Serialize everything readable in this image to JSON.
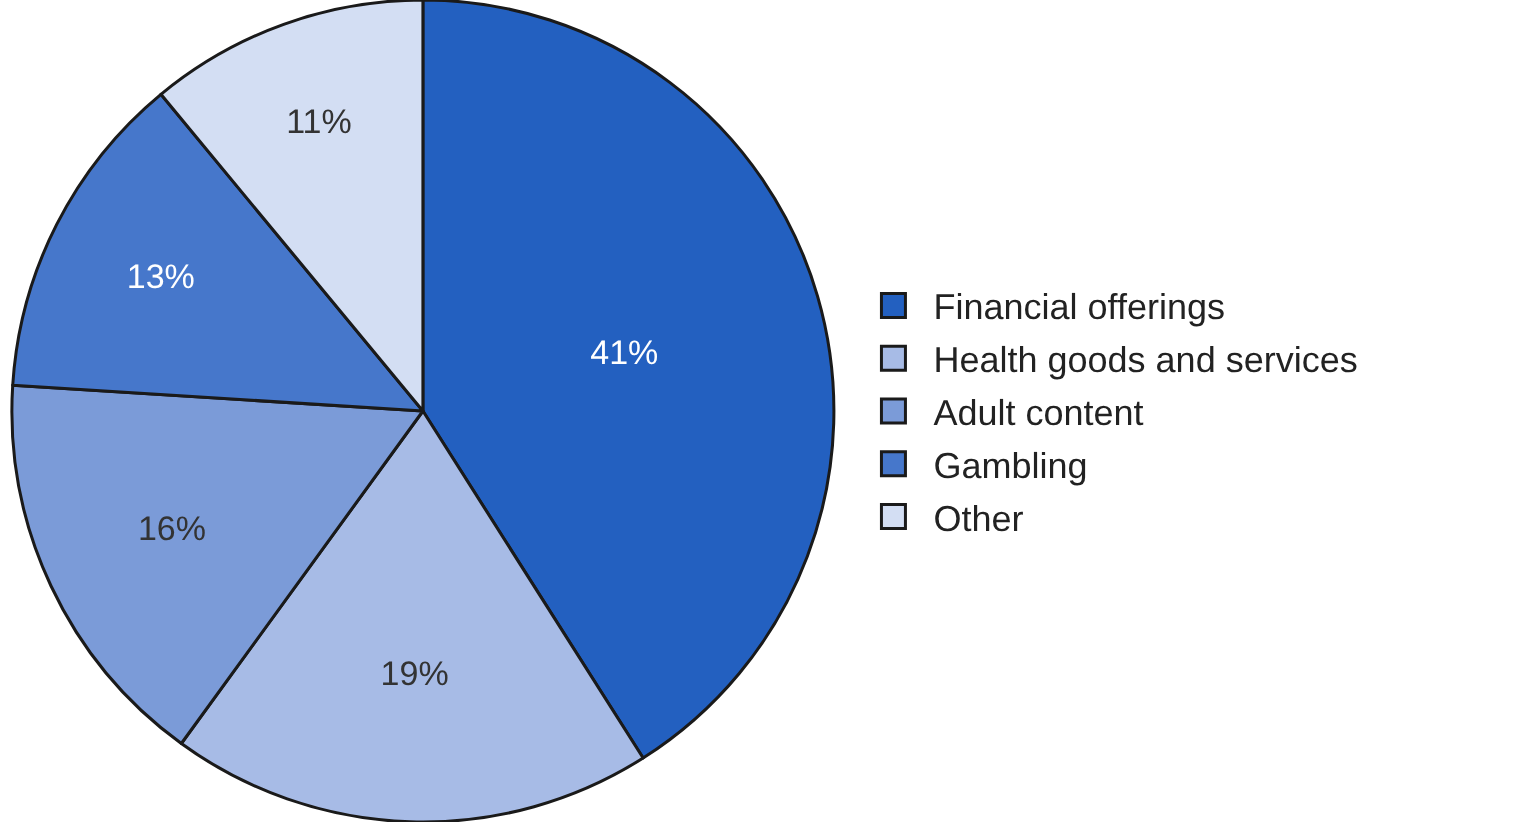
{
  "chart_data": {
    "type": "pie",
    "categories": [
      "Financial offerings",
      "Health goods and services",
      "Adult content",
      "Gambling",
      "Other"
    ],
    "values": [
      41,
      19,
      16,
      13,
      11
    ],
    "colors": [
      "#2360c0",
      "#a7bbe6",
      "#7b9bd8",
      "#4677cb",
      "#d3def3"
    ],
    "value_labels": [
      "41%",
      "19%",
      "16%",
      "13%",
      "11%"
    ],
    "legend": "right"
  }
}
